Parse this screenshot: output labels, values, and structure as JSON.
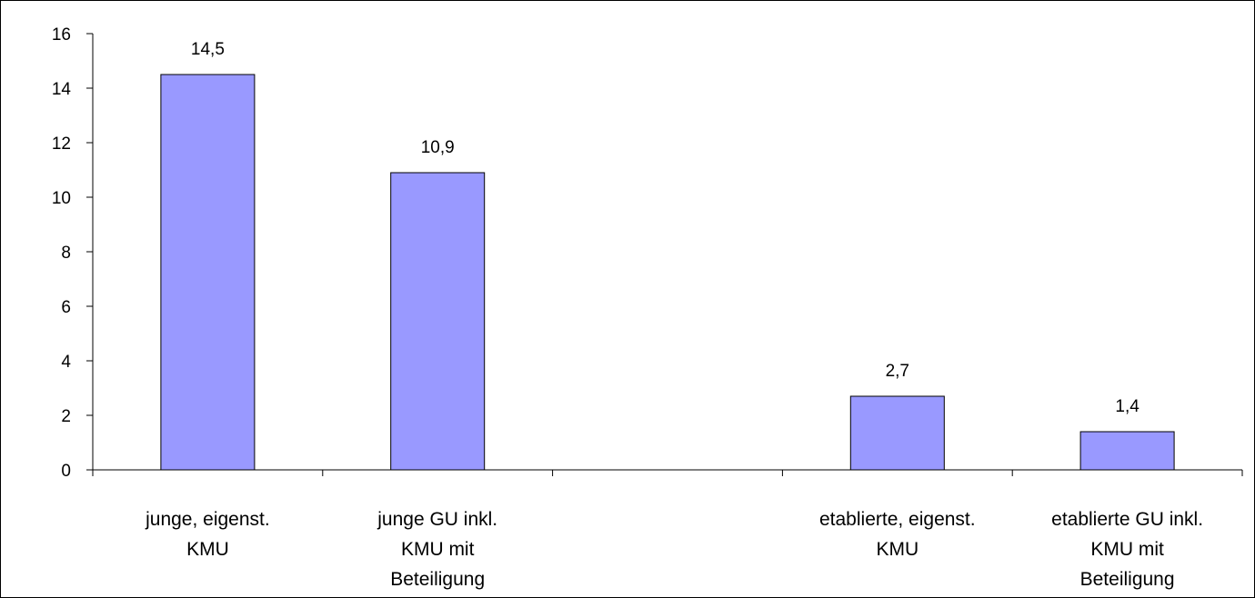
{
  "chart_data": {
    "type": "bar",
    "categories": [
      [
        "junge, eigenst.",
        "KMU"
      ],
      [
        "junge GU inkl.",
        "KMU mit",
        "Beteiligung"
      ],
      [
        ""
      ],
      [
        "etablierte, eigenst.",
        "KMU"
      ],
      [
        "etablierte GU inkl.",
        "KMU mit",
        "Beteiligung"
      ]
    ],
    "values": [
      14.5,
      10.9,
      null,
      2.7,
      1.4
    ],
    "data_labels": [
      "14,5",
      "10,9",
      "",
      "2,7",
      "1,4"
    ],
    "ylim": [
      0,
      16
    ],
    "yticks": [
      0,
      2,
      4,
      6,
      8,
      10,
      12,
      14,
      16
    ],
    "ytick_labels": [
      "0",
      "2",
      "4",
      "6",
      "8",
      "10",
      "12",
      "14",
      "16"
    ],
    "grid": false,
    "legend": "none",
    "colors": {
      "bar_fill": "#9999ff",
      "bar_stroke": "#000000",
      "axis": "#000000"
    }
  }
}
